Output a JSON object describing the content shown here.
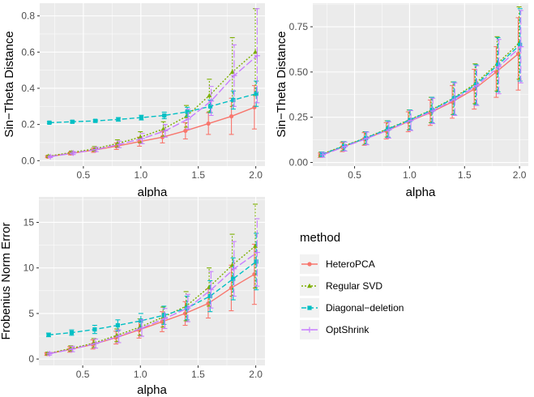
{
  "legend": {
    "title": "method",
    "methods": [
      {
        "name": "HeteroPCA",
        "color": "#F8766D",
        "shape": "circle",
        "dash": "solid"
      },
      {
        "name": "Regular SVD",
        "color": "#7CAE00",
        "shape": "triangle",
        "dash": "dotted"
      },
      {
        "name": "Diagonal−deletion",
        "color": "#00BFC4",
        "shape": "square",
        "dash": "dashed"
      },
      {
        "name": "OptShrink",
        "color": "#C77CFF",
        "shape": "plus",
        "dash": "longdash"
      }
    ]
  },
  "chart_data": [
    {
      "type": "line",
      "title": "",
      "xlabel": "alpha",
      "ylabel": "Sin−Theta Distance",
      "xlim": [
        0.12,
        2.08
      ],
      "ylim": [
        -0.03,
        0.87
      ],
      "xticks": [
        0.5,
        1.0,
        1.5,
        2.0
      ],
      "xtick_labels": [
        "0.5",
        "1.0",
        "1.5",
        "2.0"
      ],
      "yticks": [
        0.0,
        0.2,
        0.4,
        0.6,
        0.8
      ],
      "ytick_labels": [
        "0.0",
        "0.2",
        "0.4",
        "0.6",
        "0.8"
      ],
      "x": [
        0.2,
        0.4,
        0.6,
        0.8,
        1.0,
        1.2,
        1.4,
        1.6,
        1.8,
        2.0
      ],
      "series": [
        {
          "name": "HeteroPCA",
          "values": [
            0.022,
            0.04,
            0.058,
            0.08,
            0.105,
            0.13,
            0.165,
            0.205,
            0.245,
            0.295
          ],
          "err": [
            0.005,
            0.008,
            0.012,
            0.018,
            0.025,
            0.032,
            0.045,
            0.06,
            0.1,
            0.12
          ]
        },
        {
          "name": "Regular SVD",
          "values": [
            0.025,
            0.045,
            0.065,
            0.095,
            0.13,
            0.175,
            0.245,
            0.36,
            0.49,
            0.6
          ],
          "err": [
            0.005,
            0.008,
            0.013,
            0.02,
            0.03,
            0.04,
            0.06,
            0.09,
            0.19,
            0.24
          ]
        },
        {
          "name": "Diagonal−deletion",
          "values": [
            0.21,
            0.215,
            0.22,
            0.228,
            0.238,
            0.25,
            0.27,
            0.3,
            0.335,
            0.37
          ],
          "err": [
            0.005,
            0.006,
            0.007,
            0.01,
            0.013,
            0.018,
            0.025,
            0.035,
            0.05,
            0.07
          ]
        },
        {
          "name": "OptShrink",
          "values": [
            0.022,
            0.042,
            0.062,
            0.09,
            0.122,
            0.165,
            0.23,
            0.33,
            0.47,
            0.58
          ],
          "err": [
            0.005,
            0.008,
            0.012,
            0.018,
            0.028,
            0.035,
            0.055,
            0.08,
            0.17,
            0.26
          ]
        }
      ]
    },
    {
      "type": "line",
      "title": "",
      "xlabel": "alpha",
      "ylabel": "Sin−Theta Distance",
      "xlim": [
        0.12,
        2.08
      ],
      "ylim": [
        -0.02,
        0.88
      ],
      "xticks": [
        0.5,
        1.0,
        1.5,
        2.0
      ],
      "xtick_labels": [
        "0.5",
        "1.0",
        "1.5",
        "2.0"
      ],
      "yticks": [
        0.0,
        0.25,
        0.5,
        0.75
      ],
      "ytick_labels": [
        "0.00",
        "0.25",
        "0.50",
        "0.75"
      ],
      "x": [
        0.2,
        0.4,
        0.6,
        0.8,
        1.0,
        1.2,
        1.4,
        1.6,
        1.8,
        2.0
      ],
      "series": [
        {
          "name": "HeteroPCA",
          "values": [
            0.04,
            0.085,
            0.13,
            0.175,
            0.225,
            0.275,
            0.335,
            0.405,
            0.5,
            0.6
          ],
          "err": [
            0.012,
            0.025,
            0.035,
            0.045,
            0.055,
            0.07,
            0.09,
            0.11,
            0.14,
            0.2
          ]
        },
        {
          "name": "Regular SVD",
          "values": [
            0.045,
            0.09,
            0.135,
            0.185,
            0.235,
            0.29,
            0.355,
            0.435,
            0.545,
            0.66
          ],
          "err": [
            0.013,
            0.025,
            0.035,
            0.045,
            0.055,
            0.07,
            0.09,
            0.11,
            0.15,
            0.2
          ]
        },
        {
          "name": "Diagonal−deletion",
          "values": [
            0.045,
            0.09,
            0.135,
            0.185,
            0.235,
            0.29,
            0.355,
            0.43,
            0.54,
            0.65
          ],
          "err": [
            0.013,
            0.025,
            0.035,
            0.045,
            0.055,
            0.07,
            0.09,
            0.11,
            0.15,
            0.2
          ]
        },
        {
          "name": "OptShrink",
          "values": [
            0.042,
            0.088,
            0.133,
            0.18,
            0.232,
            0.285,
            0.35,
            0.425,
            0.53,
            0.64
          ],
          "err": [
            0.013,
            0.025,
            0.035,
            0.045,
            0.055,
            0.07,
            0.09,
            0.11,
            0.15,
            0.2
          ]
        }
      ]
    },
    {
      "type": "line",
      "title": "",
      "xlabel": "alpha",
      "ylabel": "Frobenius Norm Error",
      "xlim": [
        0.12,
        2.08
      ],
      "ylim": [
        -0.7,
        17.8
      ],
      "xticks": [
        0.5,
        1.0,
        1.5,
        2.0
      ],
      "xtick_labels": [
        "0.5",
        "1.0",
        "1.5",
        "2.0"
      ],
      "yticks": [
        0,
        5,
        10,
        15
      ],
      "ytick_labels": [
        "0",
        "5",
        "10",
        "15"
      ],
      "x": [
        0.2,
        0.4,
        0.6,
        0.8,
        1.0,
        1.2,
        1.4,
        1.6,
        1.8,
        2.0
      ],
      "series": [
        {
          "name": "HeteroPCA",
          "values": [
            0.55,
            1.05,
            1.6,
            2.35,
            3.2,
            4.1,
            5.0,
            6.1,
            7.8,
            9.3
          ],
          "err": [
            0.15,
            0.3,
            0.5,
            0.7,
            0.9,
            1.1,
            1.3,
            1.6,
            2.5,
            3.3
          ]
        },
        {
          "name": "Regular SVD",
          "values": [
            0.6,
            1.15,
            1.75,
            2.6,
            3.5,
            4.6,
            5.8,
            7.9,
            10.3,
            12.4
          ],
          "err": [
            0.15,
            0.3,
            0.5,
            0.7,
            0.9,
            1.1,
            1.6,
            2.1,
            3.4,
            4.6
          ]
        },
        {
          "name": "Diagonal−deletion",
          "values": [
            2.65,
            2.9,
            3.25,
            3.7,
            4.2,
            4.8,
            5.6,
            6.9,
            8.8,
            10.7
          ],
          "err": [
            0.2,
            0.3,
            0.45,
            0.6,
            0.8,
            1.0,
            1.3,
            1.7,
            2.3,
            3.1
          ]
        },
        {
          "name": "OptShrink",
          "values": [
            0.58,
            1.1,
            1.7,
            2.5,
            3.4,
            4.45,
            5.6,
            7.6,
            9.9,
            11.7
          ],
          "err": [
            0.15,
            0.3,
            0.5,
            0.7,
            0.9,
            1.1,
            1.5,
            2.0,
            3.0,
            3.7
          ]
        }
      ]
    }
  ]
}
